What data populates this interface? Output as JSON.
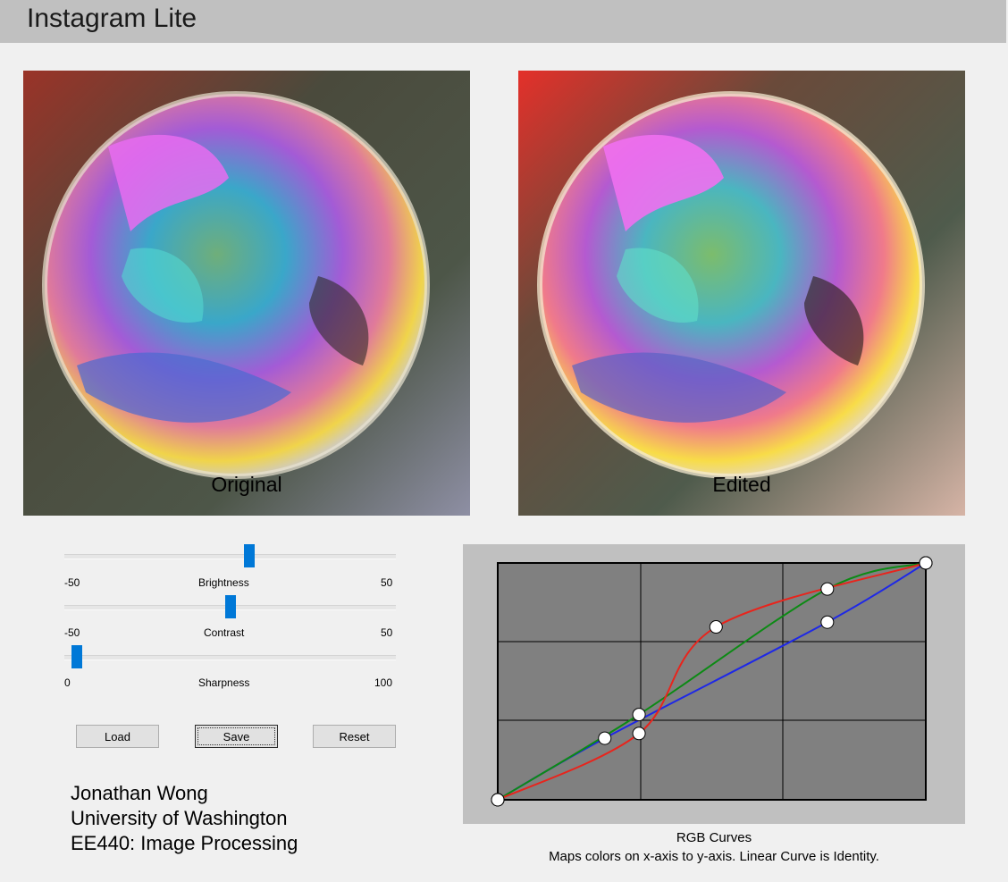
{
  "window": {
    "title": "Instagram Lite"
  },
  "images": {
    "original_label": "Original",
    "edited_label": "Edited"
  },
  "sliders": {
    "brightness": {
      "label": "Brightness",
      "min": "-50",
      "max": "50",
      "value": 6
    },
    "contrast": {
      "label": "Contrast",
      "min": "-50",
      "max": "50",
      "value": 0
    },
    "sharpness": {
      "label": "Sharpness",
      "min": "0",
      "max": "100",
      "value": 0
    }
  },
  "buttons": {
    "load": "Load",
    "save": "Save",
    "reset": "Reset"
  },
  "credits": {
    "line1": "Jonathan Wong",
    "line2": "University of Washington",
    "line3": "EE440: Image Processing"
  },
  "curves": {
    "title": "RGB Curves",
    "description": "Maps colors on x-axis to y-axis. Linear Curve is Identity.",
    "colors": {
      "red": "#e8241c",
      "green": "#0c8a14",
      "blue": "#1e28e6"
    },
    "control_points": {
      "red": [
        [
          0,
          0
        ],
        [
          0.33,
          0.28
        ],
        [
          0.51,
          0.73
        ],
        [
          1,
          1
        ]
      ],
      "green": [
        [
          0,
          0
        ],
        [
          0.33,
          0.36
        ],
        [
          0.77,
          0.89
        ],
        [
          1,
          1
        ]
      ],
      "blue": [
        [
          0,
          0
        ],
        [
          0.25,
          0.26
        ],
        [
          0.77,
          0.75
        ],
        [
          1,
          1
        ]
      ]
    }
  }
}
